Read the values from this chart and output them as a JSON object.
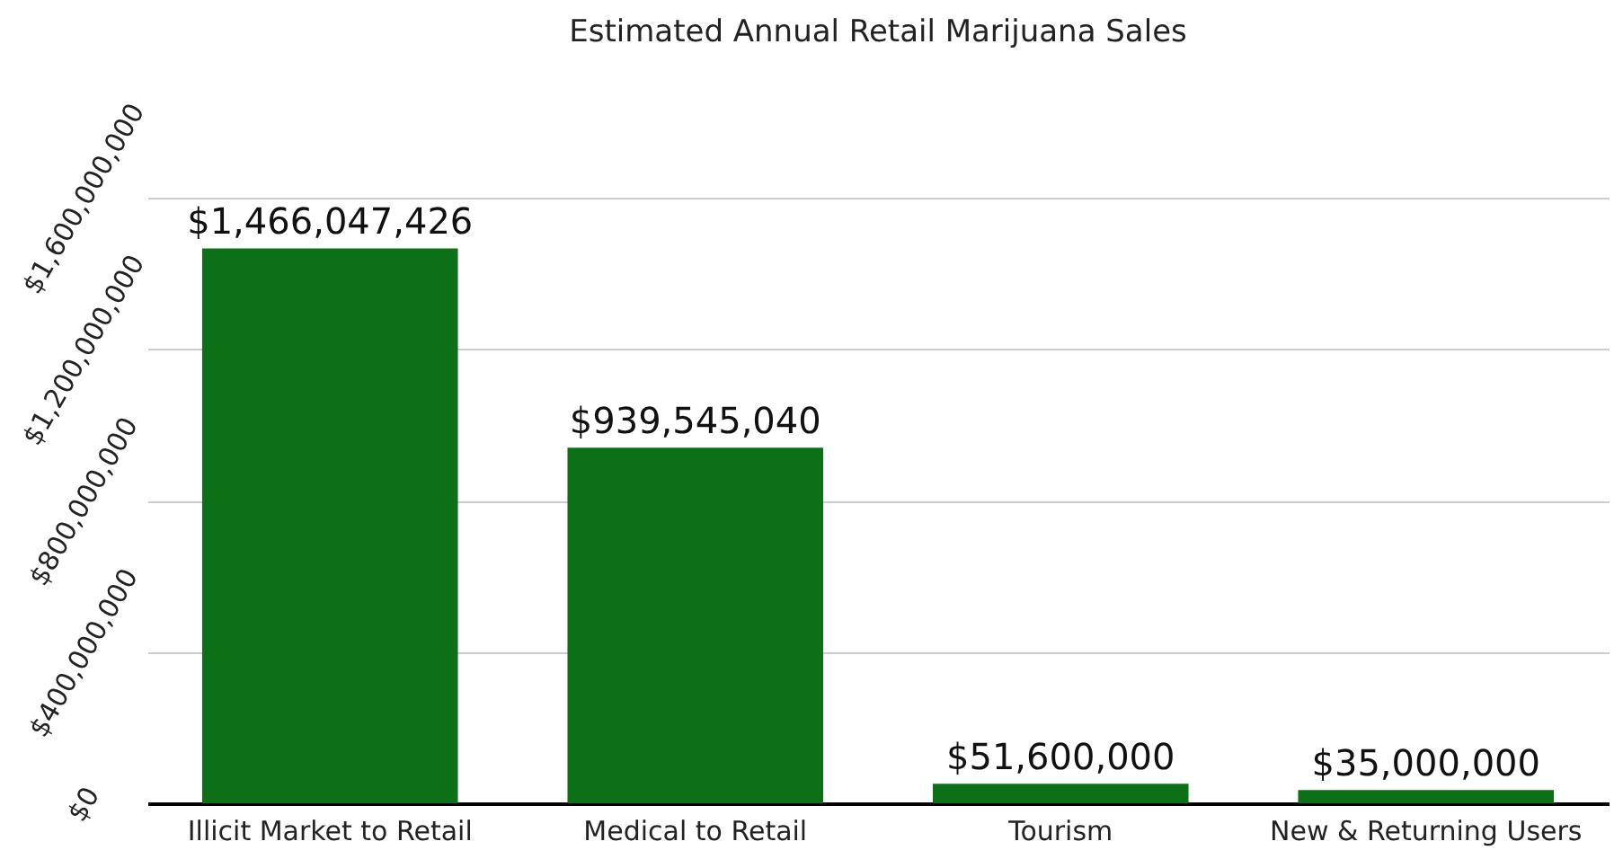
{
  "chart_data": {
    "type": "bar",
    "title": "Estimated Annual Retail Marijuana Sales",
    "categories": [
      "Illicit Market to Retail",
      "Medical to Retail",
      "Tourism",
      "New & Returning Users"
    ],
    "values": [
      1466047426,
      939545040,
      51600000,
      35000000
    ],
    "color": "#0b7016",
    "value_labels": [
      "$1,466,047,426",
      "$939,545,040",
      "$51,600,000",
      "$35,000,000"
    ],
    "ylim": [
      0,
      1600000000
    ],
    "yticks": [
      {
        "value": 0,
        "label": "$0"
      },
      {
        "value": 400000000,
        "label": "$400,000,000"
      },
      {
        "value": 800000000,
        "label": "$800,000,000"
      },
      {
        "value": 1200000000,
        "label": "$1,200,000,000"
      },
      {
        "value": 1600000000,
        "label": "$1,600,000,000"
      }
    ],
    "grid": "y"
  }
}
